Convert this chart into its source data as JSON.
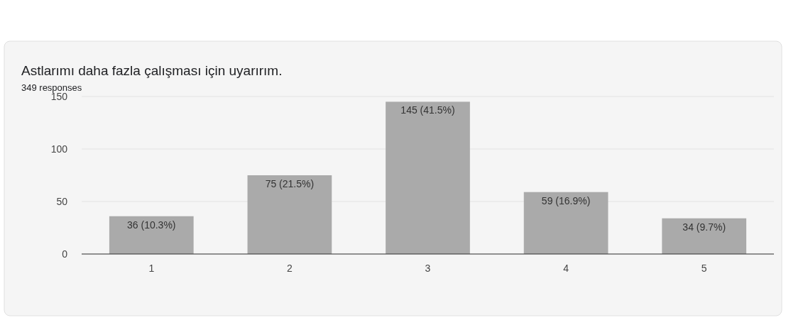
{
  "chart_data": {
    "type": "bar",
    "title": "Astlarımı daha fazla çalışması için uyarırım.",
    "subtitle": "349 responses",
    "categories": [
      "1",
      "2",
      "3",
      "4",
      "5"
    ],
    "values": [
      36,
      75,
      145,
      59,
      34
    ],
    "value_labels": [
      "36 (10.3%)",
      "75 (21.5%)",
      "145 (41.5%)",
      "59 (16.9%)",
      "34 (9.7%)"
    ],
    "color": "#aaaaaa",
    "ylim": [
      0,
      150
    ],
    "yticks": [
      0,
      50,
      100,
      150
    ],
    "grid": "y"
  }
}
